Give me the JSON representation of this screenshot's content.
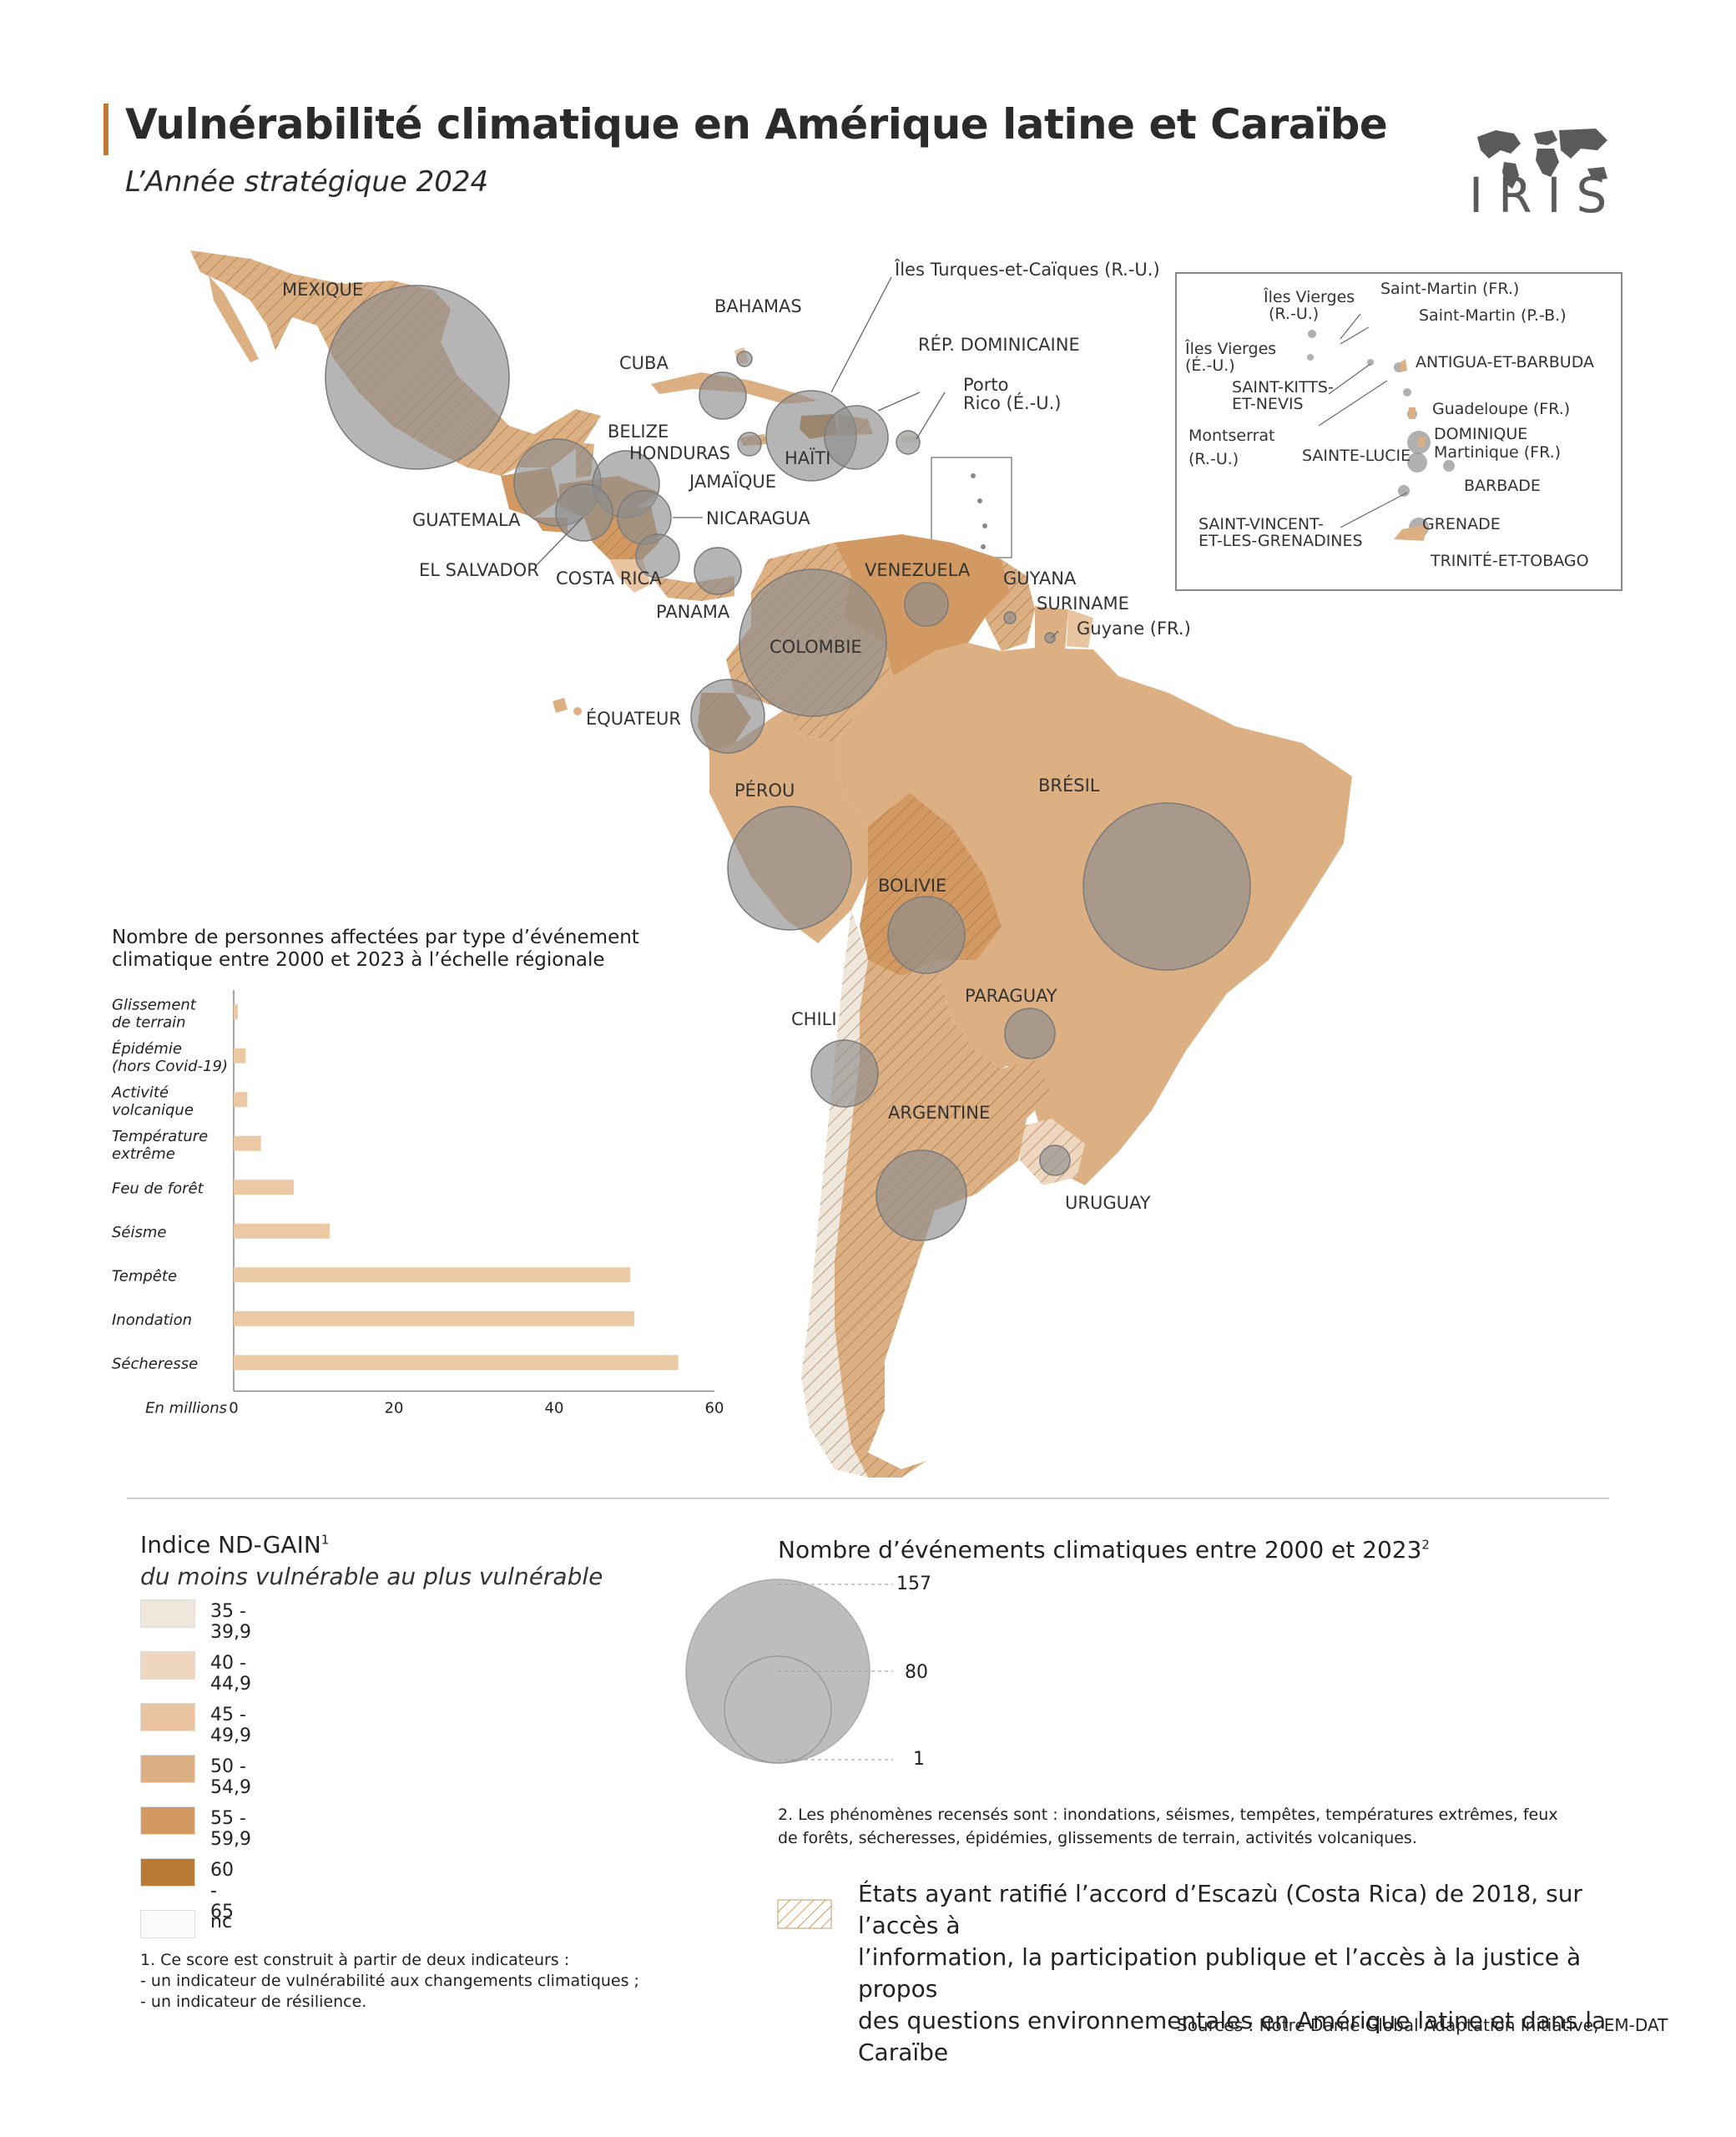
{
  "header": {
    "title": "Vulnérabilité climatique en Amérique latine et Caraïbe",
    "subtitle": "L’Année stratégique 2024",
    "logo_text": "IRIS"
  },
  "colors": {
    "nd_35": "#efe7dc",
    "nd_40": "#efd6bf",
    "nd_45": "#e8c4a0",
    "nd_50": "#ddb083",
    "nd_55": "#d29a62",
    "nd_60": "#b97a35",
    "nd_nc": "#fafafa",
    "bubble": "#8e8e8e",
    "accent": "#c07a35"
  },
  "map": {
    "countries": [
      {
        "name": "MEXIQUE",
        "events": 157,
        "escazu": true
      },
      {
        "name": "CUBA",
        "events": 40,
        "escazu": false
      },
      {
        "name": "BAHAMAS",
        "events": 5,
        "escazu": false
      },
      {
        "name": "Îles Turques-et-Caïques (R.-U.)",
        "events": 1,
        "escazu": false
      },
      {
        "name": "RÉP. DOMINICAINE",
        "events": 50,
        "escazu": true
      },
      {
        "name": "Porto Rico (É.-U.)",
        "events": 8,
        "escazu": false
      },
      {
        "name": "HAÏTI",
        "events": 80,
        "escazu": false
      },
      {
        "name": "JAMAÏQUE",
        "events": 10,
        "escazu": true
      },
      {
        "name": "BELIZE",
        "events": 10,
        "escazu": true
      },
      {
        "name": "HONDURAS",
        "events": 44,
        "escazu": false
      },
      {
        "name": "GUATEMALA",
        "events": 65,
        "escazu": false
      },
      {
        "name": "NICARAGUA",
        "events": 35,
        "escazu": true
      },
      {
        "name": "EL SALVADOR",
        "events": 38,
        "escazu": false
      },
      {
        "name": "COSTA RICA",
        "events": 22,
        "escazu": false
      },
      {
        "name": "PANAMA",
        "events": 25,
        "escazu": true
      },
      {
        "name": "VENEZUELA",
        "events": 23,
        "escazu": false
      },
      {
        "name": "GUYANA",
        "events": 3,
        "escazu": true
      },
      {
        "name": "SURINAME",
        "events": 1,
        "escazu": false
      },
      {
        "name": "Guyane (FR.)",
        "events": 1,
        "escazu": false
      },
      {
        "name": "COLOMBIE",
        "events": 100,
        "escazu": true
      },
      {
        "name": "ÉQUATEUR",
        "events": 45,
        "escazu": true
      },
      {
        "name": "PÉROU",
        "events": 72,
        "escazu": false
      },
      {
        "name": "BRÉSIL",
        "events": 125,
        "escazu": false
      },
      {
        "name": "BOLIVIE",
        "events": 48,
        "escazu": true
      },
      {
        "name": "PARAGUAY",
        "events": 20,
        "escazu": false
      },
      {
        "name": "CHILI",
        "events": 42,
        "escazu": true
      },
      {
        "name": "ARGENTINE",
        "events": 72,
        "escazu": true
      },
      {
        "name": "URUGUAY",
        "events": 12,
        "escazu": true
      }
    ],
    "inset_labels": [
      "Îles Vierges (R.-U.)",
      "Saint-Martin (FR.)",
      "Saint-Martin (P.-B.)",
      "Îles Vierges (É.-U.)",
      "ANTIGUA-ET-BARBUDA",
      "SAINT-KITTS-ET-NEVIS",
      "Guadeloupe (FR.)",
      "Montserrat (R.-U.)",
      "DOMINIQUE",
      "Martinique (FR.)",
      "SAINTE-LUCIE",
      "BARBADE",
      "SAINT-VINCENT-ET-LES-GRENADINES",
      "GRENADE",
      "TRINITÉ-ET-TOBAGO"
    ]
  },
  "chart_data": {
    "type": "bar",
    "title": "Nombre de personnes affectées par type d’événement climatique entre 2000 et 2023 à l’échelle régionale",
    "categories": [
      "Glissement de terrain",
      "Épidémie (hors Covid-19)",
      "Activité volcanique",
      "Température extrême",
      "Feu de forêt",
      "Séisme",
      "Tempête",
      "Inondation",
      "Sécheresse"
    ],
    "category_lines": [
      [
        "Glissement",
        "de terrain"
      ],
      [
        "Épidémie",
        "(hors Covid-19)"
      ],
      [
        "Activité",
        "volcanique"
      ],
      [
        "Température",
        "extrême"
      ],
      [
        "Feu de forêt"
      ],
      [
        "Séisme"
      ],
      [
        "Tempête"
      ],
      [
        "Inondation"
      ],
      [
        "Sécheresse"
      ]
    ],
    "values": [
      0.5,
      1.5,
      1.7,
      3.4,
      7.5,
      12,
      49.5,
      50,
      55.5
    ],
    "xlabel": "En millions",
    "xlim": [
      0,
      60
    ],
    "xticks": [
      0,
      20,
      40,
      60
    ],
    "bar_color": "#ebc9a5"
  },
  "legend_nd": {
    "title": "Indice ND-GAIN",
    "title_sup": "1",
    "subtitle": "du moins vulnérable au plus vulnérable",
    "items": [
      {
        "label": "35 - 39,9",
        "color": "#efe7dc"
      },
      {
        "label": "40 - 44,9",
        "color": "#efd6bf"
      },
      {
        "label": "45 - 49,9",
        "color": "#e8c4a0"
      },
      {
        "label": "50 - 54,9",
        "color": "#ddb083"
      },
      {
        "label": "55 - 59,9",
        "color": "#d29a62"
      },
      {
        "label": "60 - 65",
        "color": "#b97a35"
      },
      {
        "label": "nc",
        "color": "#fafafa"
      }
    ],
    "note_lines": [
      "1. Ce score est construit à partir de deux indicateurs :",
      " - un indicateur de vulnérabilité aux changements climatiques ;",
      " - un indicateur de résilience."
    ]
  },
  "legend_bubble": {
    "title": "Nombre d’événements climatiques entre 2000 et 2023",
    "title_sup": "2",
    "values": [
      "157",
      "80",
      "1"
    ],
    "note_lines": [
      "2. Les phénomènes recensés sont : inondations, séismes, tempêtes, températures extrêmes, feux",
      "de forêts, sécheresses, épidémies, glissements de terrain, activités volcaniques."
    ]
  },
  "escazu": {
    "lines": [
      "États ayant ratifié l’accord d’Escazù (Costa Rica) de 2018, sur l’accès à",
      "l’information, la participation publique et l’accès à la justice à propos",
      "des questions environnementales en Amérique latine et dans la Caraïbe"
    ]
  },
  "sources": "Sources : Notre Dame Global Adaptation Initiative, EM-DAT"
}
